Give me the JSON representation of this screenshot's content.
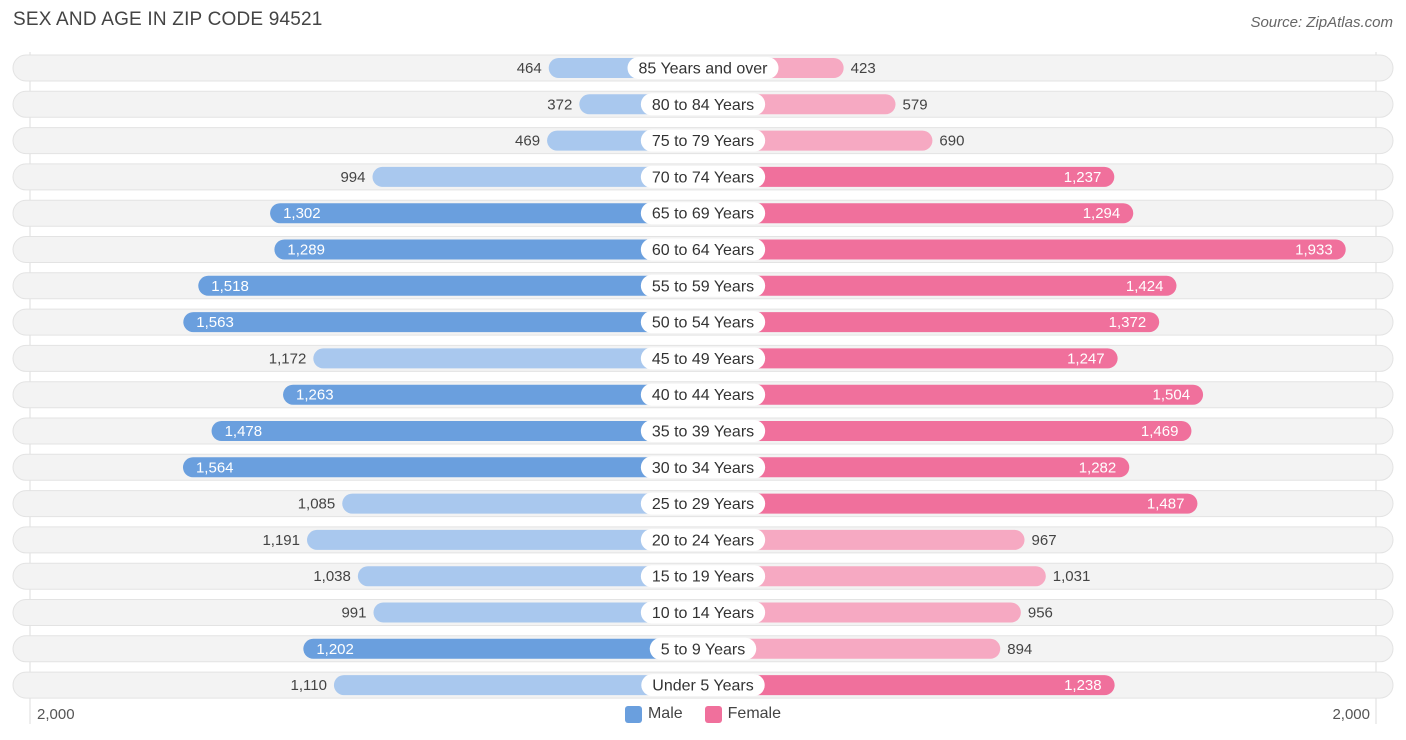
{
  "title": "SEX AND AGE IN ZIP CODE 94521",
  "source": "Source: ZipAtlas.com",
  "legend": {
    "male_label": "Male",
    "female_label": "Female"
  },
  "axis": {
    "left_label": "2,000",
    "right_label": "2,000"
  },
  "colors": {
    "male_light": "#a9c8ee",
    "male_strong": "#6a9fde",
    "female_light": "#f6a9c2",
    "female_strong": "#f0709c",
    "track": "#f1f1f1"
  },
  "chart_data": {
    "type": "bar",
    "orientation": "horizontal-diverging",
    "title": "SEX AND AGE IN ZIP CODE 94521",
    "xlim": [
      -2000,
      2000
    ],
    "categories": [
      "85 Years and over",
      "80 to 84 Years",
      "75 to 79 Years",
      "70 to 74 Years",
      "65 to 69 Years",
      "60 to 64 Years",
      "55 to 59 Years",
      "50 to 54 Years",
      "45 to 49 Years",
      "40 to 44 Years",
      "35 to 39 Years",
      "30 to 34 Years",
      "25 to 29 Years",
      "20 to 24 Years",
      "15 to 19 Years",
      "10 to 14 Years",
      "5 to 9 Years",
      "Under 5 Years"
    ],
    "series": [
      {
        "name": "Male",
        "values": [
          464,
          372,
          469,
          994,
          1302,
          1289,
          1518,
          1563,
          1172,
          1263,
          1478,
          1564,
          1085,
          1191,
          1038,
          991,
          1202,
          1110
        ],
        "labels": [
          "464",
          "372",
          "469",
          "994",
          "1,302",
          "1,289",
          "1,518",
          "1,563",
          "1,172",
          "1,263",
          "1,478",
          "1,564",
          "1,085",
          "1,191",
          "1,038",
          "991",
          "1,202",
          "1,110"
        ]
      },
      {
        "name": "Female",
        "values": [
          423,
          579,
          690,
          1237,
          1294,
          1933,
          1424,
          1372,
          1247,
          1504,
          1469,
          1282,
          1487,
          967,
          1031,
          956,
          894,
          1238
        ],
        "labels": [
          "423",
          "579",
          "690",
          "1,237",
          "1,294",
          "1,933",
          "1,424",
          "1,372",
          "1,247",
          "1,504",
          "1,469",
          "1,282",
          "1,487",
          "967",
          "1,031",
          "956",
          "894",
          "1,238"
        ]
      }
    ],
    "legend_position": "bottom-center"
  }
}
